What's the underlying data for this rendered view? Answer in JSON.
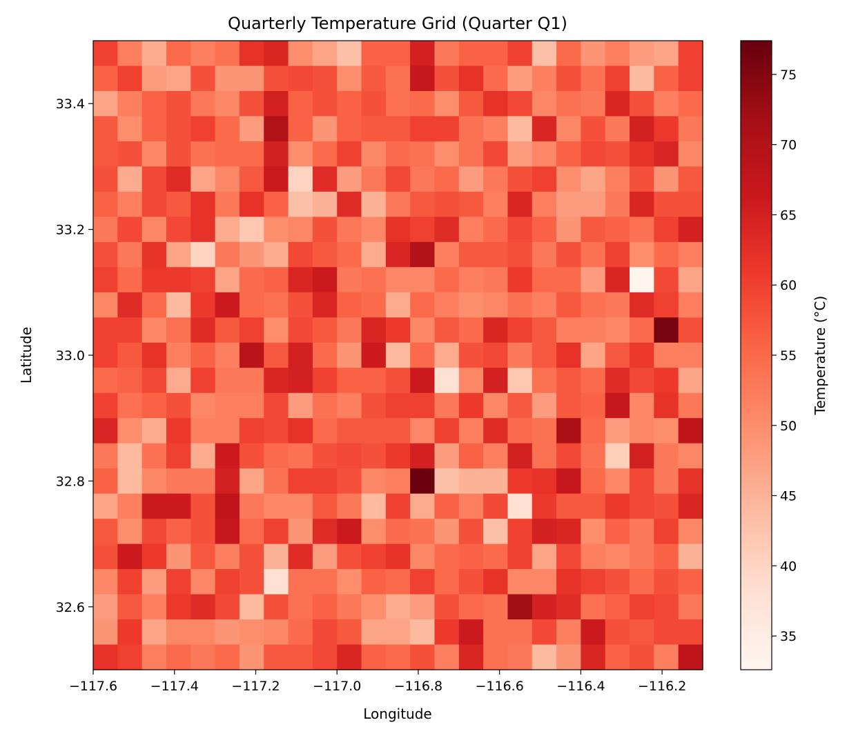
{
  "chart_data": {
    "type": "heatmap",
    "title": "Quarterly Temperature Grid (Quarter Q1)",
    "xlabel": "Longitude",
    "ylabel": "Latitude",
    "colorbar_label": "Temperature (°C)",
    "colormap": "Reds",
    "color_low": "#fff5f0",
    "color_high": "#67000d",
    "vmin": 32.6,
    "vmax": 77.4,
    "xlim": [
      -117.6,
      -116.1
    ],
    "ylim": [
      32.5,
      33.5
    ],
    "x_ticks": [
      -117.6,
      -117.4,
      -117.2,
      -117.0,
      -116.8,
      -116.6,
      -116.4,
      -116.2
    ],
    "x_tick_labels": [
      "−117.6",
      "−117.4",
      "−117.2",
      "−117.0",
      "−116.8",
      "−116.6",
      "−116.4",
      "−116.2"
    ],
    "y_ticks": [
      32.6,
      32.8,
      33.0,
      33.2,
      33.4
    ],
    "y_tick_labels": [
      "32.6",
      "32.8",
      "33.0",
      "33.2",
      "33.4"
    ],
    "colorbar_ticks": [
      35,
      40,
      45,
      50,
      55,
      60,
      65,
      70,
      75
    ],
    "colorbar_tick_labels": [
      "35",
      "40",
      "45",
      "50",
      "55",
      "60",
      "65",
      "70",
      "75"
    ],
    "grid": false,
    "nx": 25,
    "ny": 25,
    "values": [
      [
        60,
        52,
        46,
        55,
        52,
        54,
        62,
        64,
        50,
        47,
        43,
        56,
        56,
        65,
        53,
        56,
        56,
        60,
        43,
        55,
        49,
        52,
        48,
        47,
        60
      ],
      [
        56,
        60,
        48,
        47,
        58,
        49,
        49,
        58,
        59,
        58,
        50,
        57,
        54,
        67,
        58,
        62,
        55,
        48,
        52,
        58,
        54,
        60,
        44,
        56,
        60
      ],
      [
        47,
        52,
        56,
        58,
        53,
        51,
        58,
        65,
        56,
        58,
        56,
        58,
        54,
        55,
        50,
        57,
        62,
        59,
        51,
        54,
        53,
        64,
        58,
        52,
        55
      ],
      [
        57,
        50,
        56,
        58,
        60,
        55,
        48,
        70,
        56,
        49,
        56,
        57,
        57,
        60,
        60,
        54,
        52,
        44,
        64,
        51,
        58,
        53,
        65,
        61,
        53
      ],
      [
        57,
        58,
        51,
        58,
        54,
        55,
        55,
        65,
        50,
        55,
        60,
        51,
        55,
        54,
        50,
        54,
        59,
        48,
        51,
        56,
        59,
        58,
        62,
        64,
        51
      ],
      [
        58,
        46,
        59,
        63,
        47,
        51,
        57,
        66,
        40,
        63,
        48,
        53,
        59,
        53,
        55,
        48,
        53,
        58,
        60,
        50,
        47,
        52,
        58,
        49,
        57
      ],
      [
        56,
        52,
        59,
        57,
        62,
        53,
        62,
        56,
        43,
        45,
        63,
        45,
        53,
        57,
        58,
        57,
        52,
        64,
        52,
        48,
        48,
        53,
        64,
        58,
        58
      ],
      [
        53,
        59,
        51,
        59,
        62,
        46,
        42,
        50,
        51,
        58,
        53,
        51,
        62,
        60,
        63,
        52,
        55,
        59,
        56,
        49,
        57,
        56,
        54,
        60,
        65
      ],
      [
        58,
        53,
        62,
        47,
        40,
        53,
        49,
        46,
        59,
        57,
        55,
        46,
        64,
        70,
        52,
        57,
        57,
        58,
        53,
        58,
        54,
        60,
        50,
        55,
        52
      ],
      [
        60,
        55,
        61,
        61,
        60,
        47,
        55,
        56,
        64,
        66,
        53,
        54,
        51,
        51,
        55,
        52,
        53,
        61,
        55,
        55,
        48,
        64,
        33,
        59,
        47
      ],
      [
        51,
        63,
        55,
        44,
        61,
        66,
        55,
        54,
        58,
        64,
        56,
        55,
        46,
        55,
        52,
        50,
        51,
        54,
        52,
        57,
        54,
        53,
        63,
        60,
        52
      ],
      [
        60,
        60,
        51,
        54,
        63,
        57,
        60,
        50,
        59,
        57,
        53,
        64,
        61,
        51,
        57,
        55,
        64,
        60,
        57,
        52,
        52,
        51,
        55,
        76,
        58
      ],
      [
        60,
        57,
        62,
        52,
        56,
        52,
        69,
        57,
        65,
        55,
        49,
        66,
        44,
        55,
        46,
        58,
        59,
        53,
        57,
        62,
        47,
        57,
        61,
        52,
        52
      ],
      [
        55,
        56,
        59,
        46,
        60,
        53,
        53,
        64,
        65,
        60,
        56,
        56,
        58,
        66,
        38,
        51,
        65,
        42,
        54,
        57,
        55,
        63,
        59,
        61,
        47
      ],
      [
        60,
        54,
        56,
        58,
        51,
        52,
        52,
        59,
        48,
        54,
        52,
        58,
        60,
        60,
        53,
        61,
        51,
        57,
        48,
        57,
        56,
        67,
        51,
        62,
        53
      ],
      [
        64,
        50,
        46,
        61,
        52,
        52,
        60,
        59,
        62,
        55,
        57,
        57,
        57,
        51,
        60,
        52,
        63,
        55,
        54,
        71,
        55,
        48,
        51,
        50,
        68
      ],
      [
        53,
        44,
        54,
        60,
        46,
        66,
        58,
        55,
        54,
        58,
        59,
        58,
        61,
        65,
        48,
        56,
        52,
        65,
        54,
        59,
        54,
        41,
        65,
        53,
        51
      ],
      [
        56,
        44,
        51,
        53,
        53,
        65,
        47,
        54,
        60,
        60,
        58,
        51,
        52,
        77,
        43,
        45,
        45,
        61,
        62,
        67,
        55,
        51,
        59,
        53,
        62
      ],
      [
        47,
        52,
        66,
        66,
        58,
        68,
        53,
        51,
        51,
        57,
        53,
        44,
        60,
        46,
        56,
        52,
        59,
        38,
        61,
        57,
        57,
        61,
        59,
        58,
        64
      ],
      [
        57,
        50,
        59,
        56,
        58,
        67,
        55,
        60,
        49,
        63,
        66,
        50,
        55,
        54,
        49,
        58,
        43,
        60,
        65,
        64,
        50,
        56,
        53,
        60,
        51
      ],
      [
        58,
        66,
        61,
        49,
        57,
        52,
        58,
        45,
        63,
        48,
        58,
        60,
        62,
        51,
        55,
        56,
        55,
        60,
        47,
        59,
        52,
        51,
        53,
        56,
        45
      ],
      [
        51,
        60,
        48,
        60,
        51,
        60,
        58,
        38,
        54,
        54,
        50,
        56,
        55,
        60,
        55,
        58,
        62,
        51,
        51,
        62,
        60,
        58,
        55,
        58,
        56
      ],
      [
        48,
        57,
        52,
        61,
        63,
        59,
        44,
        58,
        54,
        56,
        53,
        50,
        46,
        48,
        58,
        55,
        54,
        72,
        65,
        63,
        54,
        56,
        60,
        59,
        53
      ],
      [
        49,
        61,
        47,
        51,
        51,
        49,
        50,
        51,
        55,
        59,
        57,
        47,
        47,
        44,
        61,
        66,
        54,
        54,
        59,
        52,
        66,
        58,
        57,
        59,
        59
      ],
      [
        62,
        60,
        52,
        55,
        53,
        55,
        49,
        57,
        57,
        59,
        64,
        56,
        55,
        58,
        52,
        64,
        54,
        53,
        44,
        49,
        64,
        56,
        58,
        52,
        68
      ]
    ]
  }
}
